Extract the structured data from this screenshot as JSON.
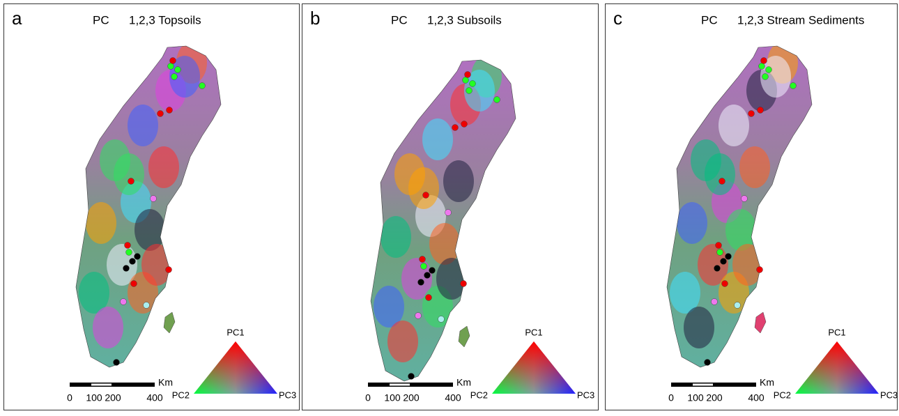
{
  "panels": [
    {
      "letter": "a",
      "title_prefix": "PC",
      "title": "1,2,3 Topsoils",
      "scale": {
        "ticks": [
          "0",
          "100",
          "200",
          "400"
        ],
        "unit": "Km"
      },
      "legend": {
        "top": "PC1",
        "left": "PC2",
        "right": "PC3"
      }
    },
    {
      "letter": "b",
      "title_prefix": "PC",
      "title": "1,2,3 Subsoils",
      "scale": {
        "ticks": [
          "0",
          "100",
          "200",
          "400"
        ],
        "unit": "Km"
      },
      "legend": {
        "top": "PC1",
        "left": "PC2",
        "right": "PC3"
      }
    },
    {
      "letter": "c",
      "title_prefix": "PC",
      "title": "1,2,3 Stream Sediments",
      "scale": {
        "ticks": [
          "0",
          "100",
          "200",
          "400"
        ],
        "unit": "Km"
      },
      "legend": {
        "top": "PC1",
        "left": "PC2",
        "right": "PC3"
      }
    }
  ]
}
